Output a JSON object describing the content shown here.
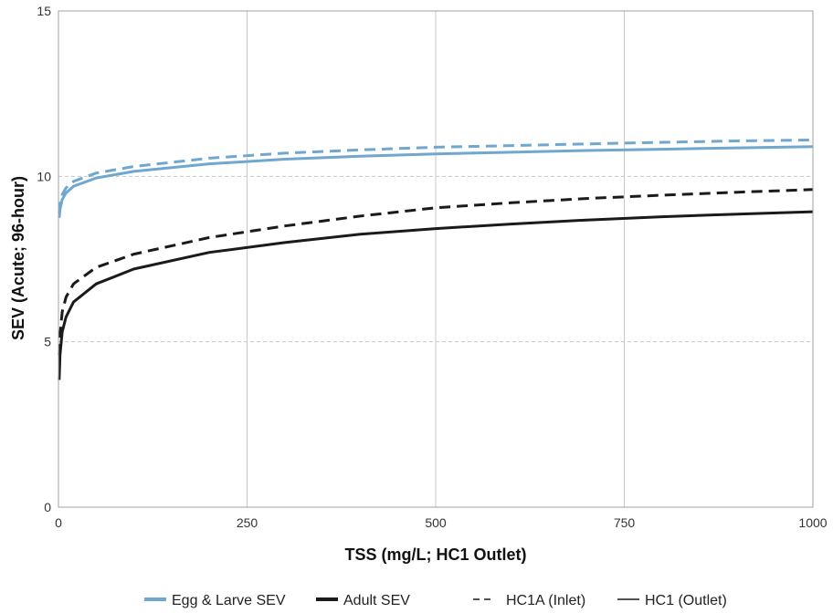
{
  "chart_data": {
    "type": "line",
    "title": "",
    "xlabel": "TSS (mg/L; HC1 Outlet)",
    "ylabel": "SEV (Acute; 96-hour)",
    "xlim": [
      0,
      1000
    ],
    "ylim": [
      0,
      15
    ],
    "x_ticks": [
      0,
      250,
      500,
      750,
      1000
    ],
    "y_ticks": [
      0,
      5,
      10,
      15
    ],
    "x_tick_labels": [
      "0",
      "250",
      "500",
      "750",
      "1000"
    ],
    "y_tick_labels": [
      "0",
      "5",
      "10",
      "15"
    ],
    "grid": {
      "vertical": "solid",
      "horizontal": "dashed"
    },
    "legend_position": "bottom",
    "series": [
      {
        "name": "Egg & Larve SEV",
        "color": "#6fa7cf",
        "dash": "dashed",
        "x": [
          1,
          2,
          5,
          10,
          20,
          50,
          100,
          200,
          300,
          400,
          500,
          600,
          700,
          800,
          900,
          1000
        ],
        "y": [
          8.9,
          9.15,
          9.45,
          9.65,
          9.85,
          10.1,
          10.3,
          10.55,
          10.7,
          10.8,
          10.88,
          10.93,
          10.98,
          11.03,
          11.07,
          11.1
        ]
      },
      {
        "name": "Egg & Larve SEV",
        "color": "#6fa7cf",
        "dash": "solid",
        "x": [
          1,
          2,
          5,
          10,
          20,
          50,
          100,
          200,
          300,
          400,
          500,
          600,
          700,
          800,
          900,
          1000
        ],
        "y": [
          8.75,
          9.0,
          9.3,
          9.5,
          9.7,
          9.95,
          10.15,
          10.38,
          10.52,
          10.61,
          10.68,
          10.73,
          10.78,
          10.82,
          10.86,
          10.9
        ]
      },
      {
        "name": "Adult SEV",
        "color": "#1a1a1a",
        "dash": "dashed",
        "x": [
          1,
          2,
          5,
          10,
          20,
          50,
          100,
          200,
          300,
          400,
          500,
          600,
          700,
          800,
          900,
          1000
        ],
        "y": [
          4.6,
          5.2,
          5.9,
          6.35,
          6.75,
          7.25,
          7.65,
          8.15,
          8.5,
          8.8,
          9.05,
          9.2,
          9.33,
          9.43,
          9.52,
          9.6
        ]
      },
      {
        "name": "Adult SEV",
        "color": "#1a1a1a",
        "dash": "solid",
        "x": [
          1,
          2,
          5,
          10,
          20,
          50,
          100,
          200,
          300,
          400,
          500,
          600,
          700,
          800,
          900,
          1000
        ],
        "y": [
          3.85,
          4.6,
          5.3,
          5.75,
          6.2,
          6.75,
          7.2,
          7.7,
          8.0,
          8.25,
          8.42,
          8.56,
          8.68,
          8.78,
          8.86,
          8.93
        ]
      }
    ],
    "legend": [
      {
        "label": "Egg & Larve SEV",
        "color": "#6fa7cf",
        "style": "thick"
      },
      {
        "label": "Adult SEV",
        "color": "#1a1a1a",
        "style": "thick"
      },
      {
        "label": "HC1A (Inlet)",
        "color": "#1a1a1a",
        "style": "dashed-thin"
      },
      {
        "label": "HC1 (Outlet)",
        "color": "#1a1a1a",
        "style": "solid-thin"
      }
    ]
  }
}
